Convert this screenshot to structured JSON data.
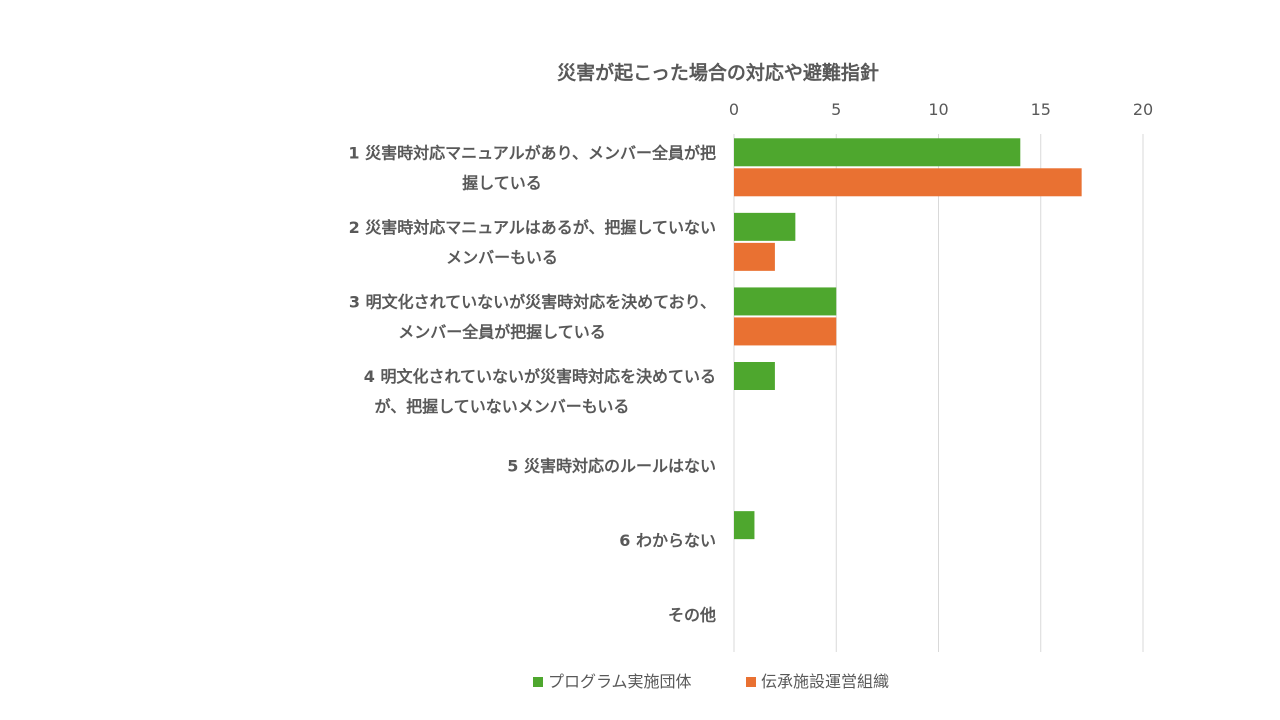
{
  "chart_data": {
    "type": "bar",
    "orientation": "horizontal",
    "title": "災害が起こった場合の対応や避難指針",
    "xlim": [
      0,
      20
    ],
    "x_ticks": [
      "0",
      "5",
      "10",
      "15",
      "20"
    ],
    "x_axis_position": "top",
    "grid": true,
    "legend_position": "bottom",
    "categories": [
      [
        "1 災害時対応マニュアルがあり、メンバー全員が把",
        "握している"
      ],
      [
        "2 災害時対応マニュアルはあるが、把握していない",
        "メンバーもいる"
      ],
      [
        "3 明文化されていないが災害時対応を決めており、",
        "メンバー全員が把握している"
      ],
      [
        "4 明文化されていないが災害時対応を決めている",
        "が、把握していないメンバーもいる"
      ],
      [
        "5 災害時対応のルールはない"
      ],
      [
        "6 わからない"
      ],
      [
        "その他"
      ]
    ],
    "series": [
      {
        "name": "プログラム実施団体",
        "color": "#4ea72e",
        "values": [
          14,
          3,
          5,
          2,
          0,
          1,
          0
        ]
      },
      {
        "name": "伝承施設運営組織",
        "color": "#e97132",
        "values": [
          17,
          2,
          5,
          0,
          0,
          0,
          0
        ]
      }
    ]
  }
}
